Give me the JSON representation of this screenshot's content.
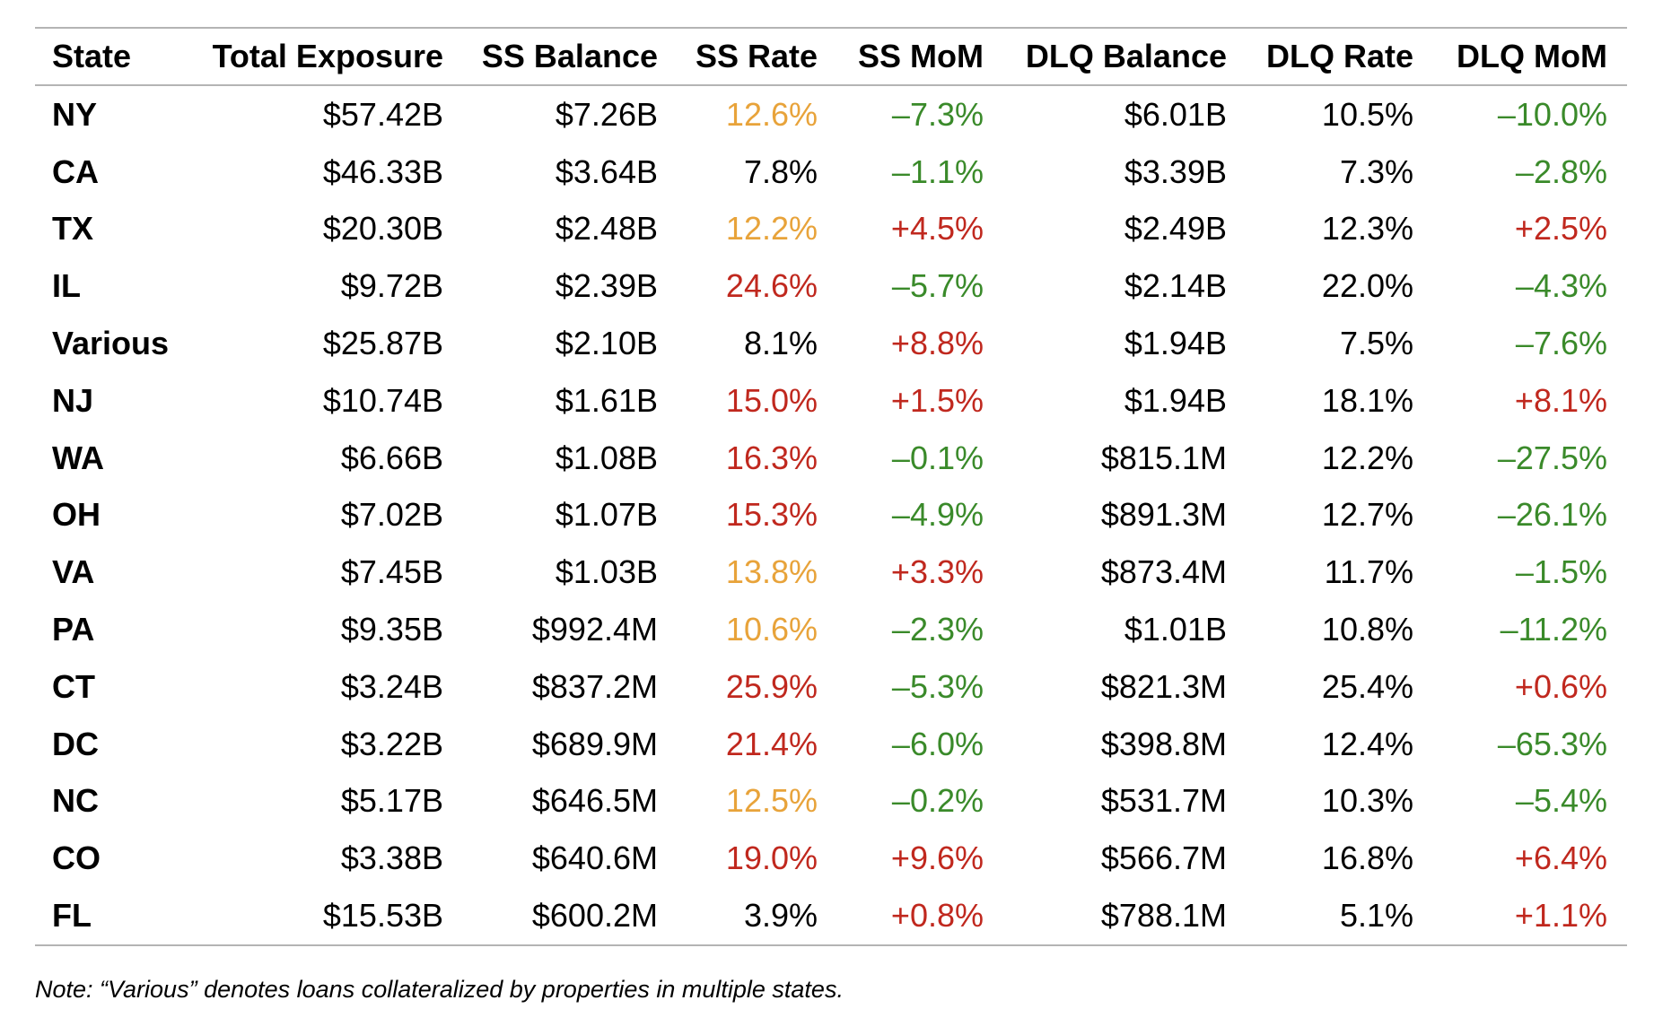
{
  "colors": {
    "elevated": "#E8A33A",
    "high": "#C0281E",
    "improving": "#3A8A2A",
    "neutral": "#000000",
    "rule": "#B4B4B4"
  },
  "table": {
    "headers": [
      "State",
      "Total Exposure",
      "SS Balance",
      "SS Rate",
      "SS MoM",
      "DLQ Balance",
      "DLQ Rate",
      "DLQ MoM"
    ],
    "rows": [
      {
        "state": "NY",
        "total_exposure": "$57.42B",
        "ss_balance": "$7.26B",
        "ss_rate": "12.6%",
        "ss_rate_level": "orange",
        "ss_mom": "–7.3%",
        "ss_mom_dir": "green",
        "dlq_balance": "$6.01B",
        "dlq_rate": "10.5%",
        "dlq_mom": "–10.0%",
        "dlq_mom_dir": "green"
      },
      {
        "state": "CA",
        "total_exposure": "$46.33B",
        "ss_balance": "$3.64B",
        "ss_rate": "7.8%",
        "ss_rate_level": "black",
        "ss_mom": "–1.1%",
        "ss_mom_dir": "green",
        "dlq_balance": "$3.39B",
        "dlq_rate": "7.3%",
        "dlq_mom": "–2.8%",
        "dlq_mom_dir": "green"
      },
      {
        "state": "TX",
        "total_exposure": "$20.30B",
        "ss_balance": "$2.48B",
        "ss_rate": "12.2%",
        "ss_rate_level": "orange",
        "ss_mom": "+4.5%",
        "ss_mom_dir": "red",
        "dlq_balance": "$2.49B",
        "dlq_rate": "12.3%",
        "dlq_mom": "+2.5%",
        "dlq_mom_dir": "red"
      },
      {
        "state": "IL",
        "total_exposure": "$9.72B",
        "ss_balance": "$2.39B",
        "ss_rate": "24.6%",
        "ss_rate_level": "red",
        "ss_mom": "–5.7%",
        "ss_mom_dir": "green",
        "dlq_balance": "$2.14B",
        "dlq_rate": "22.0%",
        "dlq_mom": "–4.3%",
        "dlq_mom_dir": "green"
      },
      {
        "state": "Various",
        "total_exposure": "$25.87B",
        "ss_balance": "$2.10B",
        "ss_rate": "8.1%",
        "ss_rate_level": "black",
        "ss_mom": "+8.8%",
        "ss_mom_dir": "red",
        "dlq_balance": "$1.94B",
        "dlq_rate": "7.5%",
        "dlq_mom": "–7.6%",
        "dlq_mom_dir": "green"
      },
      {
        "state": "NJ",
        "total_exposure": "$10.74B",
        "ss_balance": "$1.61B",
        "ss_rate": "15.0%",
        "ss_rate_level": "red",
        "ss_mom": "+1.5%",
        "ss_mom_dir": "red",
        "dlq_balance": "$1.94B",
        "dlq_rate": "18.1%",
        "dlq_mom": "+8.1%",
        "dlq_mom_dir": "red"
      },
      {
        "state": "WA",
        "total_exposure": "$6.66B",
        "ss_balance": "$1.08B",
        "ss_rate": "16.3%",
        "ss_rate_level": "red",
        "ss_mom": "–0.1%",
        "ss_mom_dir": "green",
        "dlq_balance": "$815.1M",
        "dlq_rate": "12.2%",
        "dlq_mom": "–27.5%",
        "dlq_mom_dir": "green"
      },
      {
        "state": "OH",
        "total_exposure": "$7.02B",
        "ss_balance": "$1.07B",
        "ss_rate": "15.3%",
        "ss_rate_level": "red",
        "ss_mom": "–4.9%",
        "ss_mom_dir": "green",
        "dlq_balance": "$891.3M",
        "dlq_rate": "12.7%",
        "dlq_mom": "–26.1%",
        "dlq_mom_dir": "green"
      },
      {
        "state": "VA",
        "total_exposure": "$7.45B",
        "ss_balance": "$1.03B",
        "ss_rate": "13.8%",
        "ss_rate_level": "orange",
        "ss_mom": "+3.3%",
        "ss_mom_dir": "red",
        "dlq_balance": "$873.4M",
        "dlq_rate": "11.7%",
        "dlq_mom": "–1.5%",
        "dlq_mom_dir": "green"
      },
      {
        "state": "PA",
        "total_exposure": "$9.35B",
        "ss_balance": "$992.4M",
        "ss_rate": "10.6%",
        "ss_rate_level": "orange",
        "ss_mom": "–2.3%",
        "ss_mom_dir": "green",
        "dlq_balance": "$1.01B",
        "dlq_rate": "10.8%",
        "dlq_mom": "–11.2%",
        "dlq_mom_dir": "green"
      },
      {
        "state": "CT",
        "total_exposure": "$3.24B",
        "ss_balance": "$837.2M",
        "ss_rate": "25.9%",
        "ss_rate_level": "red",
        "ss_mom": "–5.3%",
        "ss_mom_dir": "green",
        "dlq_balance": "$821.3M",
        "dlq_rate": "25.4%",
        "dlq_mom": "+0.6%",
        "dlq_mom_dir": "red"
      },
      {
        "state": "DC",
        "total_exposure": "$3.22B",
        "ss_balance": "$689.9M",
        "ss_rate": "21.4%",
        "ss_rate_level": "red",
        "ss_mom": "–6.0%",
        "ss_mom_dir": "green",
        "dlq_balance": "$398.8M",
        "dlq_rate": "12.4%",
        "dlq_mom": "–65.3%",
        "dlq_mom_dir": "green"
      },
      {
        "state": "NC",
        "total_exposure": "$5.17B",
        "ss_balance": "$646.5M",
        "ss_rate": "12.5%",
        "ss_rate_level": "orange",
        "ss_mom": "–0.2%",
        "ss_mom_dir": "green",
        "dlq_balance": "$531.7M",
        "dlq_rate": "10.3%",
        "dlq_mom": "–5.4%",
        "dlq_mom_dir": "green"
      },
      {
        "state": "CO",
        "total_exposure": "$3.38B",
        "ss_balance": "$640.6M",
        "ss_rate": "19.0%",
        "ss_rate_level": "red",
        "ss_mom": "+9.6%",
        "ss_mom_dir": "red",
        "dlq_balance": "$566.7M",
        "dlq_rate": "16.8%",
        "dlq_mom": "+6.4%",
        "dlq_mom_dir": "red"
      },
      {
        "state": "FL",
        "total_exposure": "$15.53B",
        "ss_balance": "$600.2M",
        "ss_rate": "3.9%",
        "ss_rate_level": "black",
        "ss_mom": "+0.8%",
        "ss_mom_dir": "red",
        "dlq_balance": "$788.1M",
        "dlq_rate": "5.1%",
        "dlq_mom": "+1.1%",
        "dlq_mom_dir": "red"
      }
    ]
  },
  "note": "Note: “Various” denotes loans collateralized by properties in multiple states."
}
